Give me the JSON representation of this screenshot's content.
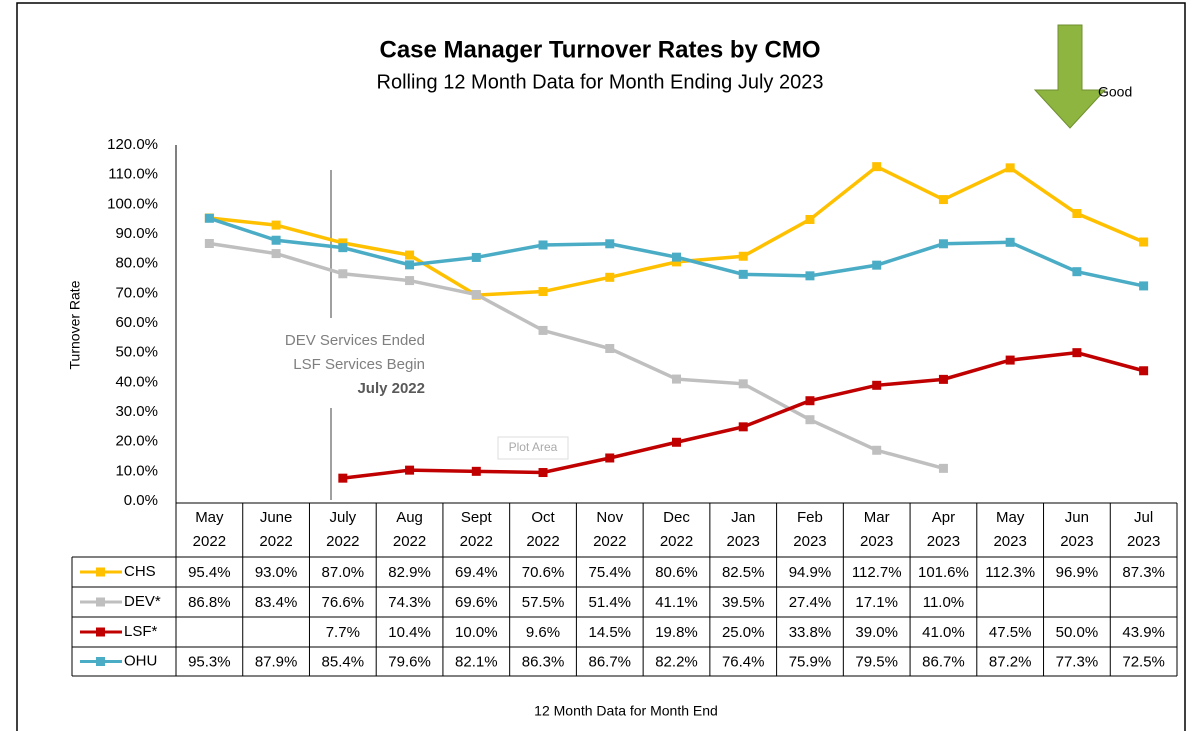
{
  "chart_data": {
    "type": "line",
    "title": "Case Manager Turnover Rates by CMO",
    "subtitle": "Rolling 12 Month Data for Month Ending July 2023",
    "y_label": "Turnover Rate",
    "x_label": "12 Month Data for Month End",
    "annotations": [
      "DEV Services Ended",
      "LSF Services Begin",
      "July 2022",
      "Good",
      "Plot Area"
    ],
    "categories": [
      "May 2022",
      "June 2022",
      "July 2022",
      "Aug 2022",
      "Sept 2022",
      "Oct 2022",
      "Nov 2022",
      "Dec 2022",
      "Jan 2023",
      "Feb 2023",
      "Mar 2023",
      "Apr 2023",
      "May 2023",
      "Jun 2023",
      "Jul 2023"
    ],
    "ylim": [
      0,
      120
    ],
    "yticks": [
      {
        "value": 0,
        "label": "0.0%"
      },
      {
        "value": 10,
        "label": "10.0%"
      },
      {
        "value": 20,
        "label": "20.0%"
      },
      {
        "value": 30,
        "label": "30.0%"
      },
      {
        "value": 40,
        "label": "40.0%"
      },
      {
        "value": 50,
        "label": "50.0%"
      },
      {
        "value": 60,
        "label": "60.0%"
      },
      {
        "value": 70,
        "label": "70.0%"
      },
      {
        "value": 80,
        "label": "80.0%"
      },
      {
        "value": 90,
        "label": "90.0%"
      },
      {
        "value": 100,
        "label": "100.0%"
      },
      {
        "value": 110,
        "label": "110.0%"
      },
      {
        "value": 120,
        "label": "120.0%"
      }
    ],
    "series": [
      {
        "name": "CHS",
        "color": "#ffc000",
        "values": [
          95.4,
          93.0,
          87.0,
          82.9,
          69.4,
          70.6,
          75.4,
          80.6,
          82.5,
          94.9,
          112.7,
          101.6,
          112.3,
          96.9,
          87.3
        ],
        "value_labels": [
          "95.4%",
          "93.0%",
          "87.0%",
          "82.9%",
          "69.4%",
          "70.6%",
          "75.4%",
          "80.6%",
          "82.5%",
          "94.9%",
          "112.7%",
          "101.6%",
          "112.3%",
          "96.9%",
          "87.3%"
        ]
      },
      {
        "name": "DEV*",
        "color": "#bfbfbf",
        "values": [
          86.8,
          83.4,
          76.6,
          74.3,
          69.6,
          57.5,
          51.4,
          41.1,
          39.5,
          27.4,
          17.1,
          11.0,
          null,
          null,
          null
        ],
        "value_labels": [
          "86.8%",
          "83.4%",
          "76.6%",
          "74.3%",
          "69.6%",
          "57.5%",
          "51.4%",
          "41.1%",
          "39.5%",
          "27.4%",
          "17.1%",
          "11.0%",
          null,
          null,
          null
        ]
      },
      {
        "name": "LSF*",
        "color": "#c00000",
        "values": [
          null,
          null,
          7.7,
          10.4,
          10.0,
          9.6,
          14.5,
          19.8,
          25.0,
          33.8,
          39.0,
          41.0,
          47.5,
          50.0,
          43.9
        ],
        "value_labels": [
          null,
          null,
          "7.7%",
          "10.4%",
          "10.0%",
          "9.6%",
          "14.5%",
          "19.8%",
          "25.0%",
          "33.8%",
          "39.0%",
          "41.0%",
          "47.5%",
          "50.0%",
          "43.9%"
        ]
      },
      {
        "name": "OHU",
        "color": "#4bacc6",
        "values": [
          95.3,
          87.9,
          85.4,
          79.6,
          82.1,
          86.3,
          86.7,
          82.2,
          76.4,
          75.9,
          79.5,
          86.7,
          87.2,
          77.3,
          72.5
        ],
        "value_labels": [
          "95.3%",
          "87.9%",
          "85.4%",
          "79.6%",
          "82.1%",
          "86.3%",
          "86.7%",
          "82.2%",
          "76.4%",
          "75.9%",
          "79.5%",
          "86.7%",
          "87.2%",
          "77.3%",
          "72.5%"
        ]
      }
    ]
  }
}
